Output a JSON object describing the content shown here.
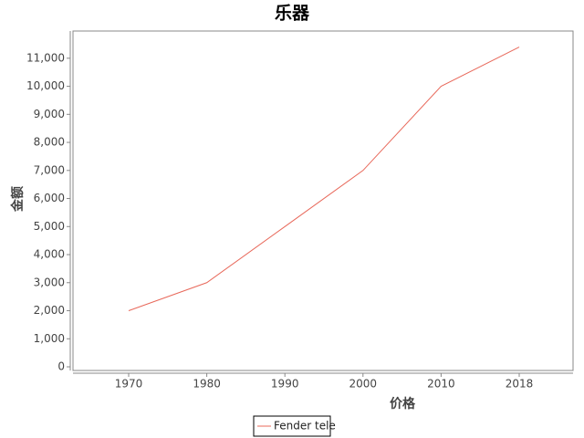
{
  "chart_data": {
    "type": "line",
    "title": "乐器",
    "x_label": "价格",
    "y_label": "金额",
    "categories": [
      "1970",
      "1980",
      "1990",
      "2000",
      "2010",
      "2018"
    ],
    "series": [
      {
        "name": "Fender tele",
        "color": "#e8685a",
        "values": [
          2000,
          3000,
          5000,
          7000,
          10000,
          11400
        ]
      }
    ],
    "ylim": [
      0,
      11970
    ],
    "yticks": [
      0,
      {
        "value": 1000,
        "label": "1,000"
      },
      {
        "value": 2000,
        "label": "2,000"
      },
      {
        "value": 3000,
        "label": "3,000"
      },
      {
        "value": 4000,
        "label": "4,000"
      },
      {
        "value": 5000,
        "label": "5,000"
      },
      {
        "value": 6000,
        "label": "6,000"
      },
      {
        "value": 7000,
        "label": "7,000"
      },
      {
        "value": 8000,
        "label": "8,000"
      },
      {
        "value": 9000,
        "label": "9,000"
      },
      {
        "value": 10000,
        "label": "10,000"
      },
      {
        "value": 11000,
        "label": "11,000"
      }
    ],
    "grid": false,
    "legend": "bottom"
  }
}
